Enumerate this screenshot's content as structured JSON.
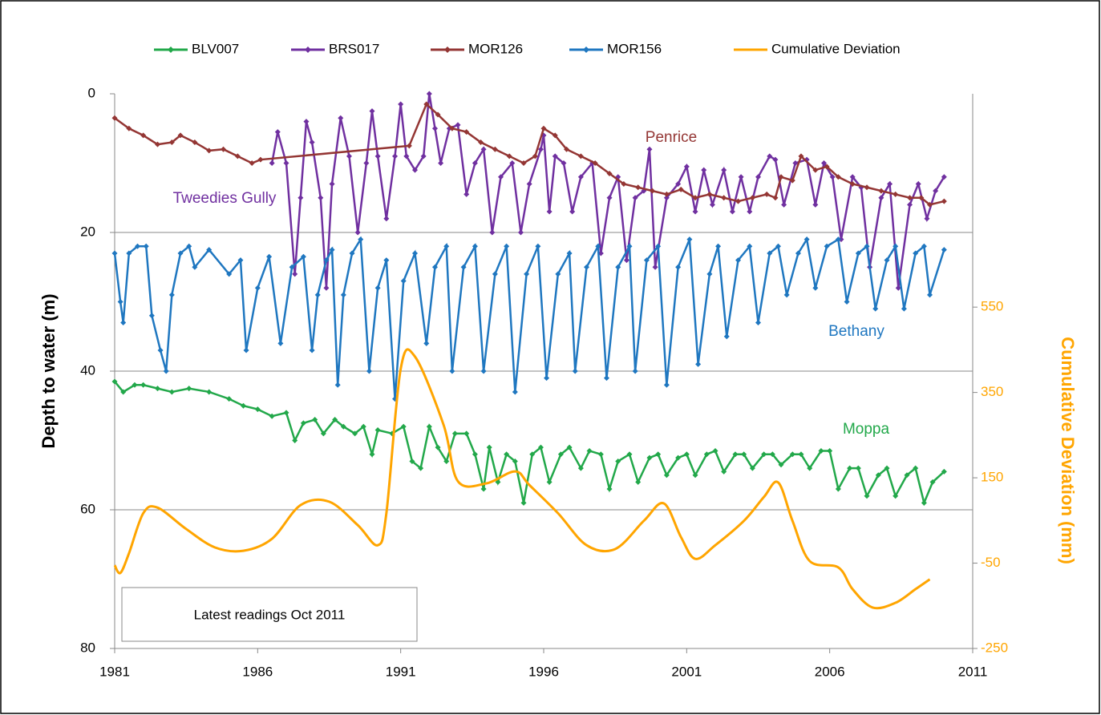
{
  "chart_data": {
    "type": "line",
    "ylabel": "Depth to water  (m)",
    "y2label": "Cumulative Deviation (mm)",
    "xlim": [
      1981,
      2011
    ],
    "xticks": [
      1981,
      1986,
      1991,
      1996,
      2001,
      2006,
      2011
    ],
    "ylim": [
      0,
      80
    ],
    "y_reversed": true,
    "yticks": [
      0,
      20,
      40,
      60,
      80
    ],
    "y2lim": [
      -250,
      1050
    ],
    "y2ticks": [
      -250,
      -50,
      150,
      350,
      550
    ],
    "y2color": "#ffa500",
    "grid": true,
    "legend": "top",
    "series": [
      {
        "name": "BLV007",
        "color": "#22a84a",
        "marker": true,
        "x": [
          1981.0,
          1981.3,
          1981.7,
          1982.0,
          1982.5,
          1983.0,
          1983.6,
          1984.3,
          1985.0,
          1985.5,
          1986.0,
          1986.5,
          1987.0,
          1987.3,
          1987.6,
          1988.0,
          1988.3,
          1988.7,
          1989.0,
          1989.4,
          1989.7,
          1990.0,
          1990.2,
          1990.7,
          1991.1,
          1991.4,
          1991.7,
          1992.0,
          1992.3,
          1992.6,
          1992.9,
          1993.3,
          1993.6,
          1993.9,
          1994.1,
          1994.4,
          1994.7,
          1995.0,
          1995.3,
          1995.6,
          1995.9,
          1996.2,
          1996.6,
          1996.9,
          1997.3,
          1997.6,
          1998.0,
          1998.3,
          1998.6,
          1999.0,
          1999.3,
          1999.7,
          2000.0,
          2000.3,
          2000.7,
          2001.0,
          2001.3,
          2001.7,
          2002.0,
          2002.3,
          2002.7,
          2003.0,
          2003.3,
          2003.7,
          2004.0,
          2004.3,
          2004.7,
          2005.0,
          2005.3,
          2005.7,
          2006.0,
          2006.3,
          2006.7,
          2007.0,
          2007.3,
          2007.7,
          2008.0,
          2008.3,
          2008.7,
          2009.0,
          2009.3,
          2009.6,
          2010.0
        ],
        "values": [
          41.5,
          43,
          42,
          42,
          42.5,
          43,
          42.5,
          43,
          44,
          45,
          45.5,
          46.5,
          46,
          50,
          47.5,
          47,
          49,
          47,
          48,
          49,
          48,
          52,
          48.5,
          49,
          48,
          53,
          54,
          48,
          51,
          53,
          49,
          49,
          52,
          57,
          51,
          56,
          52,
          53,
          59,
          52,
          51,
          56,
          52,
          51,
          54,
          51.5,
          52,
          57,
          53,
          52,
          56,
          52.5,
          52,
          55,
          52.5,
          52,
          55,
          52,
          51.5,
          54.5,
          52,
          52,
          54,
          52,
          52,
          53.5,
          52,
          52,
          54,
          51.5,
          51.5,
          57,
          54,
          54,
          58,
          55,
          54,
          58,
          55,
          54,
          59,
          56,
          54.5
        ]
      },
      {
        "name": "BRS017",
        "color": "#7030a0",
        "marker": true,
        "x": [
          1986.5,
          1986.7,
          1987.0,
          1987.3,
          1987.5,
          1987.7,
          1987.9,
          1988.2,
          1988.4,
          1988.6,
          1988.9,
          1989.2,
          1989.5,
          1989.8,
          1990.0,
          1990.2,
          1990.5,
          1990.8,
          1991.0,
          1991.2,
          1991.5,
          1991.8,
          1992.0,
          1992.2,
          1992.4,
          1992.7,
          1993.0,
          1993.3,
          1993.6,
          1993.9,
          1994.2,
          1994.5,
          1994.9,
          1995.2,
          1995.5,
          1995.9,
          1996.0,
          1996.2,
          1996.4,
          1996.7,
          1997.0,
          1997.3,
          1997.7,
          1998.0,
          1998.3,
          1998.6,
          1998.9,
          1999.2,
          1999.5,
          1999.7,
          1999.9,
          2000.3,
          2000.7,
          2001.0,
          2001.3,
          2001.6,
          2001.9,
          2002.3,
          2002.6,
          2002.9,
          2003.2,
          2003.5,
          2003.9,
          2004.1,
          2004.4,
          2004.8,
          2005.2,
          2005.5,
          2005.8,
          2006.1,
          2006.4,
          2006.8,
          2007.1,
          2007.4,
          2007.8,
          2008.1,
          2008.4,
          2008.8,
          2009.1,
          2009.4,
          2009.7,
          2010.0
        ],
        "values": [
          10,
          5.5,
          10,
          26,
          15,
          4,
          7,
          15,
          28,
          13,
          3.5,
          9,
          20,
          10,
          2.5,
          9,
          18,
          9,
          1.5,
          9,
          11,
          9,
          0,
          5,
          10,
          5,
          4.5,
          14.5,
          10,
          8,
          20,
          12,
          10,
          20,
          13,
          8,
          6,
          17,
          9,
          10,
          17,
          12,
          10,
          23,
          15,
          12,
          24,
          15,
          14,
          8,
          25,
          15,
          13,
          10.5,
          17,
          11,
          16,
          11,
          17,
          12,
          17,
          12,
          9,
          9.5,
          16,
          10,
          9.5,
          16,
          10,
          12,
          21,
          12,
          13.5,
          25,
          15,
          13,
          28,
          16,
          13,
          18,
          14,
          12
        ]
      },
      {
        "name": "MOR126",
        "color": "#943634",
        "marker": true,
        "x": [
          1981.0,
          1981.5,
          1982.0,
          1982.5,
          1983.0,
          1983.3,
          1983.8,
          1984.3,
          1984.8,
          1985.3,
          1985.8,
          1986.1,
          1991.3,
          1991.9,
          1992.3,
          1992.8,
          1993.3,
          1993.8,
          1994.3,
          1994.8,
          1995.3,
          1995.7,
          1996.0,
          1996.4,
          1996.8,
          1997.3,
          1997.8,
          1998.3,
          1998.8,
          1999.3,
          1999.8,
          2000.3,
          2000.8,
          2001.3,
          2001.8,
          2002.3,
          2002.8,
          2003.3,
          2003.8,
          2004.1,
          2004.3,
          2004.7,
          2005.0,
          2005.5,
          2005.9,
          2006.3,
          2006.8,
          2007.3,
          2007.8,
          2008.3,
          2008.8,
          2009.2,
          2009.5,
          2010.0
        ],
        "values": [
          3.5,
          5,
          6,
          7.3,
          7,
          6,
          7,
          8.2,
          8,
          9,
          10,
          9.5,
          7.5,
          1.5,
          3,
          5,
          5.5,
          7,
          8,
          9,
          10,
          9,
          5,
          6,
          8,
          9,
          10,
          11.5,
          13,
          13.5,
          14,
          14.5,
          13.8,
          15,
          14.5,
          15,
          15.5,
          15,
          14.5,
          15,
          12,
          12.5,
          9,
          11,
          10.5,
          12,
          13,
          13.5,
          14,
          14.5,
          15,
          15,
          16,
          15.5
        ]
      },
      {
        "name": "MOR156",
        "color": "#1f77c0",
        "marker": true,
        "x": [
          1981.0,
          1981.2,
          1981.3,
          1981.5,
          1981.8,
          1982.1,
          1982.3,
          1982.6,
          1982.8,
          1983.0,
          1983.3,
          1983.6,
          1983.8,
          1984.3,
          1985.0,
          1985.4,
          1985.6,
          1986.0,
          1986.4,
          1986.8,
          1987.2,
          1987.6,
          1987.9,
          1988.1,
          1988.4,
          1988.6,
          1988.8,
          1989.0,
          1989.3,
          1989.6,
          1989.9,
          1990.2,
          1990.5,
          1990.8,
          1991.1,
          1991.5,
          1991.9,
          1992.2,
          1992.6,
          1992.8,
          1993.2,
          1993.6,
          1993.9,
          1994.3,
          1994.7,
          1995.0,
          1995.4,
          1995.8,
          1996.1,
          1996.5,
          1996.9,
          1997.1,
          1997.5,
          1997.9,
          1998.2,
          1998.6,
          1999.0,
          1999.2,
          1999.6,
          2000.0,
          2000.3,
          2000.7,
          2001.1,
          2001.4,
          2001.8,
          2002.1,
          2002.4,
          2002.8,
          2003.2,
          2003.5,
          2003.9,
          2004.2,
          2004.5,
          2004.9,
          2005.2,
          2005.5,
          2005.9,
          2006.3,
          2006.6,
          2007.0,
          2007.3,
          2007.6,
          2008.0,
          2008.3,
          2008.6,
          2009.0,
          2009.3,
          2009.5,
          2010.0
        ],
        "values": [
          23,
          30,
          33,
          23,
          22,
          22,
          32,
          37,
          40,
          29,
          23,
          22,
          25,
          22.5,
          26,
          24,
          37,
          28,
          23.5,
          36,
          25,
          23.5,
          37,
          29,
          24,
          22.5,
          42,
          29,
          23,
          21,
          40,
          28,
          24,
          44,
          27,
          23,
          36,
          25,
          22,
          40,
          25,
          22,
          40,
          26,
          22,
          43,
          26,
          22,
          41,
          26,
          23,
          40,
          25,
          22,
          41,
          25,
          22,
          40,
          24,
          22,
          42,
          25,
          21,
          39,
          26,
          22,
          35,
          24,
          22,
          33,
          23,
          22,
          29,
          23,
          21,
          28,
          22,
          21,
          30,
          23,
          22,
          31,
          24,
          22,
          31,
          23,
          22,
          29,
          22.5
        ]
      },
      {
        "name": "Cumulative Deviation",
        "color": "#ffa500",
        "marker": false,
        "axis": "y2",
        "x": [
          1981.0,
          1981.2,
          1981.5,
          1982.0,
          1982.5,
          1983.5,
          1984.5,
          1985.5,
          1986.5,
          1987.5,
          1988.5,
          1989.5,
          1990.2,
          1990.5,
          1991.0,
          1991.5,
          1992.5,
          1993.0,
          1994.0,
          1995.0,
          1995.5,
          1996.5,
          1997.5,
          1998.5,
          1999.5,
          2000.2,
          2000.8,
          2001.3,
          2002.0,
          2003.0,
          2003.7,
          2004.2,
          2004.7,
          2005.3,
          2006.3,
          2006.8,
          2007.5,
          2008.3,
          2009.0,
          2009.5
        ],
        "values": [
          -55,
          -73,
          -27,
          67,
          80,
          30,
          -13,
          -21,
          7,
          86,
          94,
          39,
          -8,
          67,
          405,
          434,
          274,
          142,
          137,
          165,
          133,
          67,
          -8,
          -17,
          49,
          90,
          11,
          -40,
          -8,
          49,
          105,
          139,
          49,
          -45,
          -60,
          -111,
          -154,
          -143,
          -111,
          -88
        ]
      }
    ],
    "annotations": [
      {
        "text": "Penrice",
        "color": "#943634"
      },
      {
        "text": "Tweedies Gully",
        "color": "#7030a0"
      },
      {
        "text": "Bethany",
        "color": "#1f77c0"
      },
      {
        "text": "Moppa",
        "color": "#22a84a"
      }
    ],
    "note": "Latest readings Oct 2011"
  }
}
